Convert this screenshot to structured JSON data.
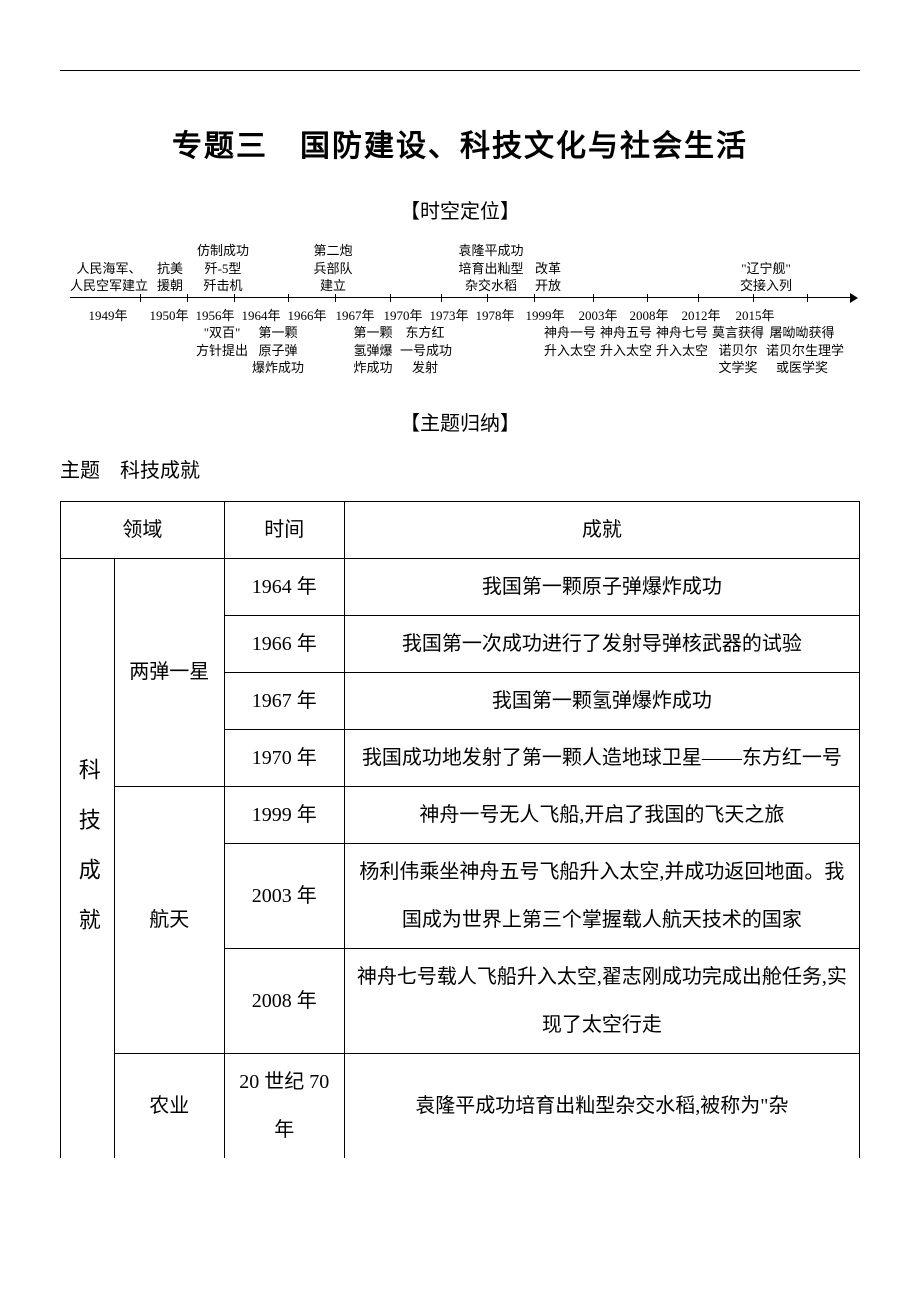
{
  "title": "专题三　国防建设、科技文化与社会生活",
  "section_timeline": "【时空定位】",
  "section_summary": "【主题归纳】",
  "topic": "主题　科技成就",
  "timeline": {
    "above": [
      {
        "w": 78,
        "lines": [
          "人民海军、",
          "人民空军建立"
        ]
      },
      {
        "w": 44,
        "lines": [
          "抗美",
          "援朝"
        ]
      },
      {
        "w": 62,
        "lines": [
          "仿制成功",
          "歼-5型",
          "歼击机"
        ]
      },
      {
        "w": 52,
        "lines": [
          "",
          ""
        ]
      },
      {
        "w": 54,
        "lines": [
          "第二炮",
          "兵部队",
          "建立"
        ]
      },
      {
        "w": 48,
        "lines": [
          "",
          "",
          ""
        ]
      },
      {
        "w": 48,
        "lines": [
          "",
          "",
          ""
        ]
      },
      {
        "w": 70,
        "lines": [
          "袁隆平成功",
          "培育出籼型",
          "杂交水稻"
        ]
      },
      {
        "w": 44,
        "lines": [
          "",
          "改革",
          "开放"
        ]
      },
      {
        "w": 52,
        "lines": [
          "",
          "",
          ""
        ]
      },
      {
        "w": 60,
        "lines": [
          "",
          "",
          ""
        ]
      },
      {
        "w": 56,
        "lines": [
          "",
          "",
          ""
        ]
      },
      {
        "w": 56,
        "lines": [
          "",
          "\"辽宁舰\"",
          "交接入列"
        ]
      },
      {
        "w": 56,
        "lines": [
          "",
          "",
          ""
        ]
      }
    ],
    "years": [
      {
        "w": 76,
        "t": "1949年"
      },
      {
        "w": 46,
        "t": "1950年"
      },
      {
        "w": 46,
        "t": "1956年"
      },
      {
        "w": 46,
        "t": "1964年"
      },
      {
        "w": 46,
        "t": "1966年"
      },
      {
        "w": 50,
        "t": "1967年"
      },
      {
        "w": 46,
        "t": "1970年"
      },
      {
        "w": 46,
        "t": "1973年"
      },
      {
        "w": 46,
        "t": "1978年"
      },
      {
        "w": 54,
        "t": "1999年"
      },
      {
        "w": 52,
        "t": "2003年"
      },
      {
        "w": 50,
        "t": "2008年"
      },
      {
        "w": 54,
        "t": "2012年"
      },
      {
        "w": 54,
        "t": "2015年"
      }
    ],
    "below": [
      {
        "w": 122,
        "lines": [
          "",
          "",
          ""
        ]
      },
      {
        "w": 60,
        "lines": [
          "\"双百\"",
          "方针提出",
          ""
        ]
      },
      {
        "w": 52,
        "lines": [
          "第一颗",
          "原子弹",
          "爆炸成功"
        ]
      },
      {
        "w": 42,
        "lines": [
          "",
          "",
          ""
        ]
      },
      {
        "w": 54,
        "lines": [
          "第一颗",
          "氢弹爆",
          "炸成功"
        ]
      },
      {
        "w": 50,
        "lines": [
          "东方红",
          "一号成功",
          "发射"
        ]
      },
      {
        "w": 92,
        "lines": [
          "",
          "",
          ""
        ]
      },
      {
        "w": 56,
        "lines": [
          "神舟一号",
          "升入太空",
          ""
        ]
      },
      {
        "w": 56,
        "lines": [
          "神舟五号",
          "升入太空",
          ""
        ]
      },
      {
        "w": 56,
        "lines": [
          "神舟七号",
          "升入太空",
          ""
        ]
      },
      {
        "w": 56,
        "lines": [
          "莫言获得",
          "诺贝尔",
          "文学奖"
        ]
      },
      {
        "w": 72,
        "lines": [
          "屠呦呦获得",
          "诺贝尔生理学",
          "或医学奖"
        ]
      }
    ],
    "tick_positions_pct": [
      9,
      15,
      21,
      28,
      34,
      41,
      47.5,
      53.5,
      59.5,
      67,
      74,
      80.5,
      87.5,
      94.5
    ]
  },
  "table": {
    "headers": {
      "domain": "领域",
      "time": "时间",
      "achievement": "成就"
    },
    "rowgroup_label": "科技成就",
    "rows": [
      {
        "cat": "两弹一星",
        "catspan": 4,
        "year": "1964 年",
        "text": "我国第一颗原子弹爆炸成功",
        "center": true
      },
      {
        "year": "1966 年",
        "text": "我国第一次成功进行了发射导弹核武器的试验",
        "center": true
      },
      {
        "year": "1967 年",
        "text": "我国第一颗氢弹爆炸成功",
        "center": true
      },
      {
        "year": "1970 年",
        "text": "我国成功地发射了第一颗人造地球卫星——东方红一号",
        "center": true
      },
      {
        "cat": "航天",
        "catspan": 3,
        "year": "1999 年",
        "text": "神舟一号无人飞船,开启了我国的飞天之旅"
      },
      {
        "year": "2003 年",
        "text": "杨利伟乘坐神舟五号飞船升入太空,并成功返回地面。我国成为世界上第三个掌握载人航天技术的国家"
      },
      {
        "year": "2008 年",
        "text": "神舟七号载人飞船升入太空,翟志刚成功完成出舱任务,实现了太空行走"
      },
      {
        "cat": "农业",
        "catspan": 1,
        "year": "20 世纪 70 年",
        "text": "袁隆平成功培育出籼型杂交水稻,被称为\"杂",
        "open": true
      }
    ]
  }
}
